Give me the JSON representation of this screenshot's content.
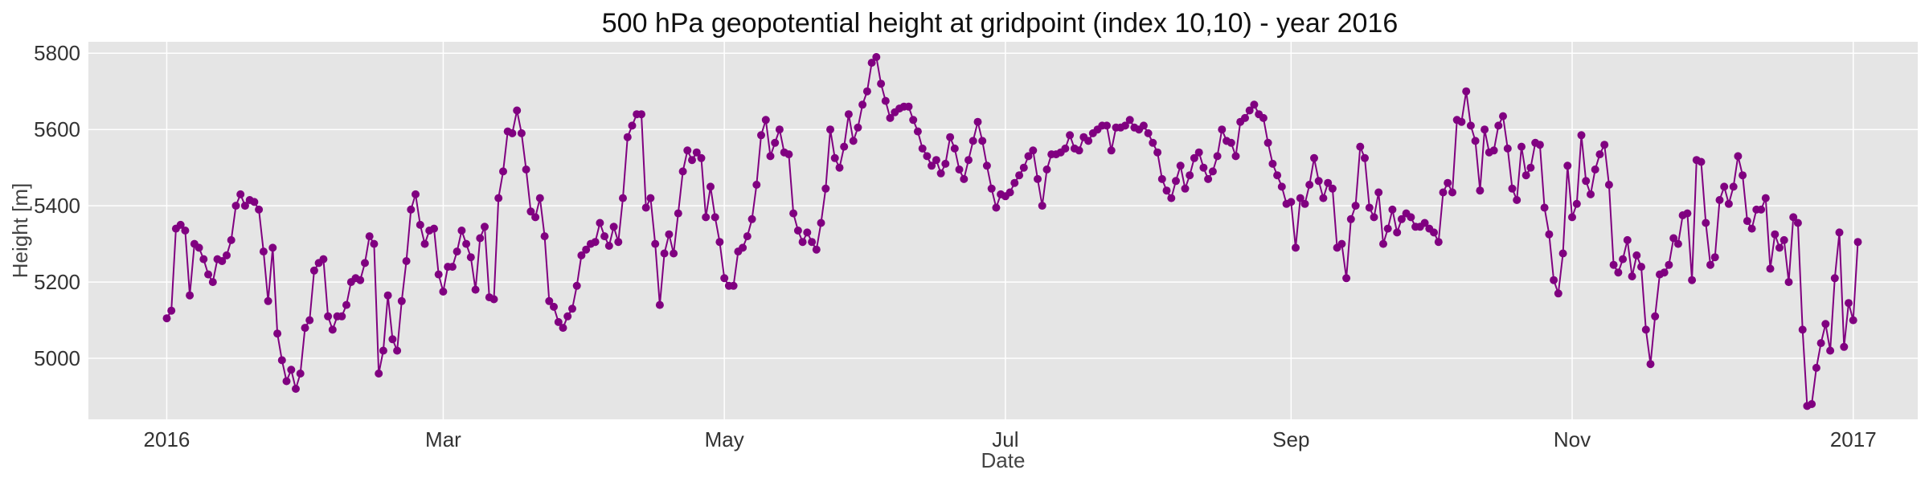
{
  "chart_data": {
    "type": "line",
    "title": "500 hPa geopotential height at gridpoint (index 10,10) - year 2016",
    "xlabel": "Date",
    "ylabel": "Height [m]",
    "xlim": [
      "2015-12-15",
      "2017-01-15"
    ],
    "ylim": [
      4840,
      5830
    ],
    "x_ticks": [
      {
        "date": "2016-01-01",
        "label": "2016"
      },
      {
        "date": "2016-03-01",
        "label": "Mar"
      },
      {
        "date": "2016-05-01",
        "label": "May"
      },
      {
        "date": "2016-07-01",
        "label": "Jul"
      },
      {
        "date": "2016-09-01",
        "label": "Sep"
      },
      {
        "date": "2016-11-01",
        "label": "Nov"
      },
      {
        "date": "2017-01-01",
        "label": "2017"
      }
    ],
    "y_ticks": [
      5000,
      5200,
      5400,
      5600,
      5800
    ],
    "grid": true,
    "marker": "circle",
    "colors": {
      "series": "#800080",
      "plot_background": "#e5e5e5",
      "grid": "#ffffff"
    },
    "series": [
      {
        "start_date": "2016-01-01",
        "frequency": "daily",
        "values": [
          5105,
          5125,
          5340,
          5350,
          5335,
          5165,
          5300,
          5290,
          5260,
          5220,
          5200,
          5260,
          5255,
          5270,
          5310,
          5400,
          5430,
          5400,
          5415,
          5410,
          5390,
          5280,
          5150,
          5290,
          5065,
          4995,
          4940,
          4970,
          4920,
          4960,
          5080,
          5100,
          5230,
          5250,
          5260,
          5110,
          5075,
          5110,
          5110,
          5140,
          5200,
          5210,
          5205,
          5250,
          5320,
          5300,
          4960,
          5020,
          5165,
          5050,
          5020,
          5150,
          5255,
          5390,
          5430,
          5350,
          5300,
          5335,
          5340,
          5220,
          5175,
          5240,
          5240,
          5280,
          5335,
          5300,
          5265,
          5180,
          5315,
          5345,
          5160,
          5155,
          5420,
          5490,
          5595,
          5590,
          5650,
          5590,
          5495,
          5385,
          5370,
          5420,
          5320,
          5150,
          5135,
          5095,
          5080,
          5110,
          5130,
          5190,
          5270,
          5285,
          5300,
          5305,
          5355,
          5320,
          5295,
          5345,
          5305,
          5420,
          5580,
          5610,
          5640,
          5640,
          5395,
          5420,
          5300,
          5140,
          5275,
          5325,
          5275,
          5380,
          5490,
          5545,
          5520,
          5540,
          5525,
          5370,
          5450,
          5370,
          5305,
          5210,
          5190,
          5190,
          5280,
          5290,
          5320,
          5365,
          5455,
          5585,
          5625,
          5530,
          5565,
          5600,
          5540,
          5535,
          5380,
          5335,
          5305,
          5330,
          5305,
          5285,
          5355,
          5445,
          5600,
          5525,
          5500,
          5555,
          5640,
          5570,
          5605,
          5665,
          5700,
          5775,
          5790,
          5720,
          5675,
          5630,
          5645,
          5655,
          5660,
          5660,
          5625,
          5595,
          5550,
          5530,
          5505,
          5520,
          5485,
          5510,
          5580,
          5550,
          5495,
          5470,
          5520,
          5570,
          5620,
          5570,
          5505,
          5445,
          5395,
          5430,
          5425,
          5435,
          5460,
          5480,
          5500,
          5530,
          5545,
          5470,
          5400,
          5495,
          5535,
          5535,
          5540,
          5550,
          5585,
          5550,
          5545,
          5580,
          5570,
          5590,
          5600,
          5610,
          5610,
          5545,
          5605,
          5605,
          5610,
          5625,
          5605,
          5600,
          5610,
          5590,
          5565,
          5540,
          5470,
          5440,
          5420,
          5465,
          5505,
          5445,
          5480,
          5525,
          5540,
          5500,
          5470,
          5490,
          5530,
          5600,
          5570,
          5565,
          5530,
          5620,
          5630,
          5650,
          5665,
          5640,
          5630,
          5565,
          5510,
          5480,
          5450,
          5405,
          5410,
          5290,
          5420,
          5405,
          5455,
          5525,
          5465,
          5420,
          5460,
          5445,
          5290,
          5300,
          5210,
          5365,
          5400,
          5555,
          5525,
          5395,
          5370,
          5435,
          5300,
          5340,
          5390,
          5330,
          5365,
          5380,
          5370,
          5345,
          5345,
          5355,
          5340,
          5330,
          5305,
          5435,
          5460,
          5435,
          5625,
          5620,
          5700,
          5610,
          5570,
          5440,
          5600,
          5540,
          5545,
          5610,
          5635,
          5550,
          5445,
          5415,
          5555,
          5480,
          5500,
          5565,
          5560,
          5395,
          5325,
          5205,
          5170,
          5275,
          5505,
          5370,
          5405,
          5585,
          5465,
          5430,
          5495,
          5535,
          5560,
          5455,
          5245,
          5225,
          5260,
          5310,
          5215,
          5270,
          5240,
          5075,
          4985,
          5110,
          5220,
          5225,
          5245,
          5315,
          5300,
          5375,
          5380,
          5205,
          5520,
          5515,
          5355,
          5245,
          5265,
          5415,
          5450,
          5405,
          5450,
          5530,
          5480,
          5360,
          5340,
          5390,
          5390,
          5420,
          5235,
          5325,
          5290,
          5310,
          5200,
          5370,
          5355,
          5075,
          4875,
          4880,
          4975,
          5040,
          5090,
          5020,
          5210,
          5330,
          5030,
          5145,
          5100,
          5305
        ]
      }
    ]
  }
}
